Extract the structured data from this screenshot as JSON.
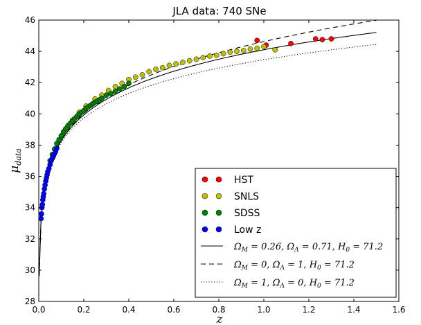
{
  "chart_data": {
    "type": "scatter",
    "title": "JLA data: 740 SNe",
    "xlabel": "z",
    "ylabel": "μ_data",
    "ylabel_base": "μ",
    "ylabel_sub": "data",
    "xlim": [
      0.0,
      1.6
    ],
    "ylim": [
      28,
      46
    ],
    "xticks": [
      "0.0",
      "0.2",
      "0.4",
      "0.6",
      "0.8",
      "1.0",
      "1.2",
      "1.4",
      "1.6"
    ],
    "yticks": [
      "28",
      "30",
      "32",
      "34",
      "36",
      "38",
      "40",
      "42",
      "44",
      "46"
    ],
    "grid": false,
    "legend_position": "lower-right",
    "series": [
      {
        "name": "HST",
        "color": "#ff0000",
        "x": [
          0.97,
          1.01,
          1.12,
          1.23,
          1.26,
          1.3
        ],
        "y": [
          44.7,
          44.4,
          44.5,
          44.8,
          44.75,
          44.8
        ]
      },
      {
        "name": "SNLS",
        "color": "#bfbf00",
        "x": [
          0.12,
          0.15,
          0.18,
          0.21,
          0.25,
          0.28,
          0.31,
          0.34,
          0.37,
          0.4,
          0.43,
          0.46,
          0.49,
          0.52,
          0.55,
          0.58,
          0.61,
          0.64,
          0.67,
          0.7,
          0.73,
          0.76,
          0.79,
          0.82,
          0.85,
          0.88,
          0.91,
          0.94,
          0.97,
          1.0,
          1.05
        ],
        "y": [
          39.0,
          39.6,
          40.1,
          40.5,
          40.95,
          41.2,
          41.5,
          41.75,
          41.95,
          42.2,
          42.35,
          42.5,
          42.7,
          42.85,
          42.95,
          43.1,
          43.2,
          43.3,
          43.4,
          43.5,
          43.6,
          43.7,
          43.75,
          43.85,
          43.95,
          44.0,
          44.05,
          44.15,
          44.2,
          44.3,
          44.1
        ]
      },
      {
        "name": "SDSS",
        "color": "#007f00",
        "x": [
          0.05,
          0.06,
          0.07,
          0.08,
          0.09,
          0.1,
          0.11,
          0.12,
          0.13,
          0.14,
          0.15,
          0.16,
          0.17,
          0.18,
          0.19,
          0.2,
          0.21,
          0.22,
          0.23,
          0.24,
          0.25,
          0.26,
          0.27,
          0.28,
          0.3,
          0.32,
          0.34,
          0.36,
          0.38,
          0.4
        ],
        "y": [
          37.0,
          37.4,
          37.75,
          38.1,
          38.35,
          38.6,
          38.85,
          39.05,
          39.25,
          39.4,
          39.55,
          39.7,
          39.85,
          40.0,
          40.1,
          40.2,
          40.35,
          40.45,
          40.55,
          40.65,
          40.75,
          40.8,
          40.9,
          41.0,
          41.2,
          41.3,
          41.45,
          41.6,
          41.75,
          41.95
        ]
      },
      {
        "name": "Low z",
        "color": "#0000ff",
        "x": [
          0.01,
          0.012,
          0.014,
          0.016,
          0.018,
          0.02,
          0.022,
          0.025,
          0.028,
          0.031,
          0.034,
          0.037,
          0.04,
          0.045,
          0.05,
          0.055,
          0.06,
          0.065,
          0.07,
          0.075,
          0.08
        ],
        "y": [
          33.3,
          33.6,
          34.0,
          34.2,
          34.5,
          34.7,
          34.9,
          35.2,
          35.45,
          35.7,
          35.9,
          36.1,
          36.3,
          36.5,
          36.75,
          37.0,
          37.15,
          37.3,
          37.45,
          37.6,
          37.8
        ]
      }
    ],
    "models": [
      {
        "name": "Ω_M = 0.26, Ω_Λ = 0.71, H_0 = 71.2",
        "Om": 0.26,
        "OL": 0.71,
        "H0": 71.2,
        "style": "solid",
        "parts": [
          [
            "Ω",
            "M",
            " = 0.26, "
          ],
          [
            "Ω",
            "Λ",
            " = 0.71, "
          ],
          [
            "H",
            "0",
            " = 71.2"
          ]
        ]
      },
      {
        "name": "Ω_M = 0, Ω_Λ = 1, H_0 = 71.2",
        "Om": 0.0,
        "OL": 1.0,
        "H0": 71.2,
        "style": "dashed",
        "parts": [
          [
            "Ω",
            "M",
            " = 0, "
          ],
          [
            "Ω",
            "Λ",
            " = 1, "
          ],
          [
            "H",
            "0",
            " = 71.2"
          ]
        ]
      },
      {
        "name": "Ω_M = 1, Ω_Λ = 0, H_0 = 71.2",
        "Om": 1.0,
        "OL": 0.0,
        "H0": 71.2,
        "style": "dotted",
        "parts": [
          [
            "Ω",
            "M",
            " = 1, "
          ],
          [
            "Ω",
            "Λ",
            " = 0, "
          ],
          [
            "H",
            "0",
            " = 71.2"
          ]
        ]
      }
    ]
  }
}
